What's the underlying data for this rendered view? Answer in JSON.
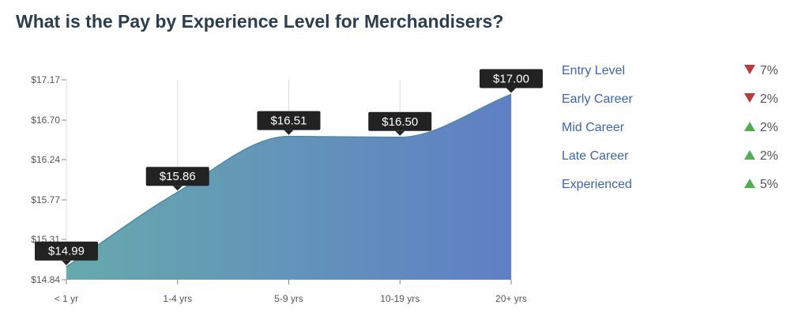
{
  "page": {
    "title": "What is the Pay by Experience Level for Merchandisers?"
  },
  "chart_data": {
    "type": "area",
    "categories": [
      "< 1 yr",
      "1-4 yrs",
      "5-9 yrs",
      "10-19 yrs",
      "20+ yrs"
    ],
    "values": [
      14.99,
      15.86,
      16.51,
      16.5,
      17.0
    ],
    "value_labels": [
      "$14.99",
      "$15.86",
      "$16.51",
      "$16.50",
      "$17.00"
    ],
    "y_ticks": [
      "$14.84",
      "$15.31",
      "$15.77",
      "$16.24",
      "$16.70",
      "$17.17"
    ],
    "y_tick_values": [
      14.84,
      15.31,
      15.77,
      16.24,
      16.7,
      17.17
    ],
    "ylim": [
      14.84,
      17.17
    ],
    "grid": "vertical",
    "colors": {
      "start": "#67a9ad",
      "end": "#5f7fc5",
      "line": "#4f88a8",
      "grid": "#dddddd",
      "tooltip": "#222222"
    }
  },
  "legend": {
    "items": [
      {
        "name": "Entry Level",
        "direction": "down",
        "change": "7%"
      },
      {
        "name": "Early Career",
        "direction": "down",
        "change": "2%"
      },
      {
        "name": "Mid Career",
        "direction": "up",
        "change": "2%"
      },
      {
        "name": "Late Career",
        "direction": "up",
        "change": "2%"
      },
      {
        "name": "Experienced",
        "direction": "up",
        "change": "5%"
      }
    ]
  }
}
